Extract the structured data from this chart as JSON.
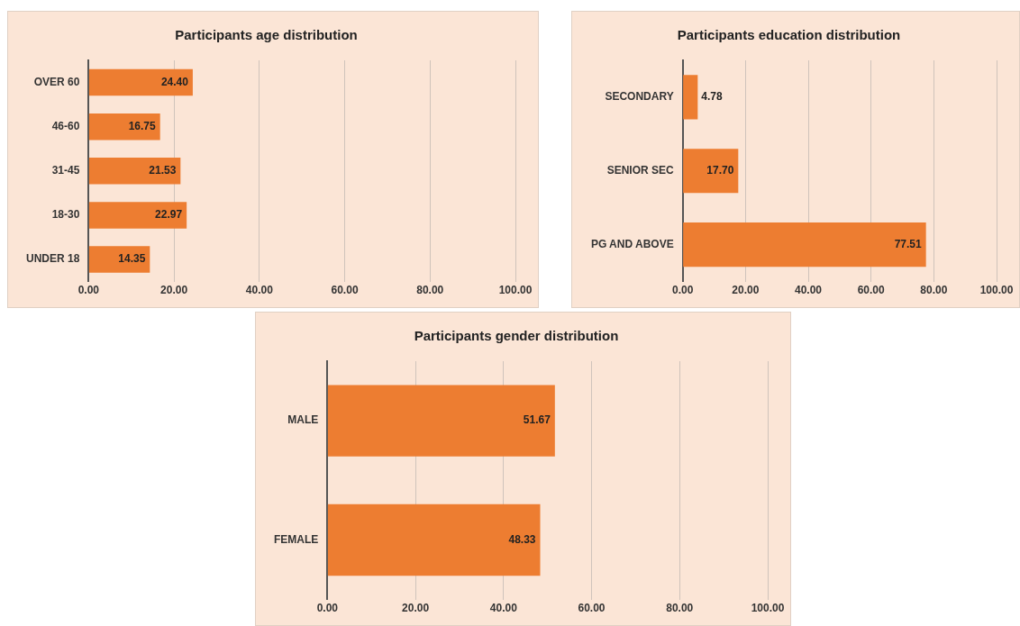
{
  "chart_data": [
    {
      "type": "bar",
      "orientation": "horizontal",
      "title": "Participants age distribution",
      "categories": [
        "OVER 60",
        "46-60",
        "31-45",
        "18-30",
        "UNDER 18"
      ],
      "values": [
        24.4,
        16.75,
        21.53,
        22.97,
        14.35
      ],
      "value_labels": [
        "24.40",
        "16.75",
        "21.53",
        "22.97",
        "14.35"
      ],
      "color": "#ed7d31",
      "xlim": [
        0,
        100
      ],
      "xticks": [
        {
          "value": 0,
          "label": "0.00"
        },
        {
          "value": 20,
          "label": "20.00"
        },
        {
          "value": 40,
          "label": "40.00"
        },
        {
          "value": 60,
          "label": "60.00"
        },
        {
          "value": 80,
          "label": "80.00"
        },
        {
          "value": 100,
          "label": "100.00"
        }
      ],
      "grid": "x"
    },
    {
      "type": "bar",
      "orientation": "horizontal",
      "title": "Participants education distribution",
      "categories": [
        "SECONDARY",
        "SENIOR SEC",
        "PG AND ABOVE"
      ],
      "values": [
        4.78,
        17.7,
        77.51
      ],
      "value_labels": [
        "4.78",
        "17.70",
        "77.51"
      ],
      "color": "#ed7d31",
      "xlim": [
        0,
        100
      ],
      "xticks": [
        {
          "value": 0,
          "label": "0.00"
        },
        {
          "value": 20,
          "label": "20.00"
        },
        {
          "value": 40,
          "label": "40.00"
        },
        {
          "value": 60,
          "label": "60.00"
        },
        {
          "value": 80,
          "label": "80.00"
        },
        {
          "value": 100,
          "label": "100.00"
        }
      ],
      "grid": "x"
    },
    {
      "type": "bar",
      "orientation": "horizontal",
      "title": "Participants gender distribution",
      "categories": [
        "MALE",
        "FEMALE"
      ],
      "values": [
        51.67,
        48.33
      ],
      "value_labels": [
        "51.67",
        "48.33"
      ],
      "color": "#ed7d31",
      "xlim": [
        0,
        100
      ],
      "xticks": [
        {
          "value": 0,
          "label": "0.00"
        },
        {
          "value": 20,
          "label": "20.00"
        },
        {
          "value": 40,
          "label": "40.00"
        },
        {
          "value": 60,
          "label": "60.00"
        },
        {
          "value": 80,
          "label": "80.00"
        },
        {
          "value": 100,
          "label": "100.00"
        }
      ],
      "grid": "x"
    }
  ]
}
